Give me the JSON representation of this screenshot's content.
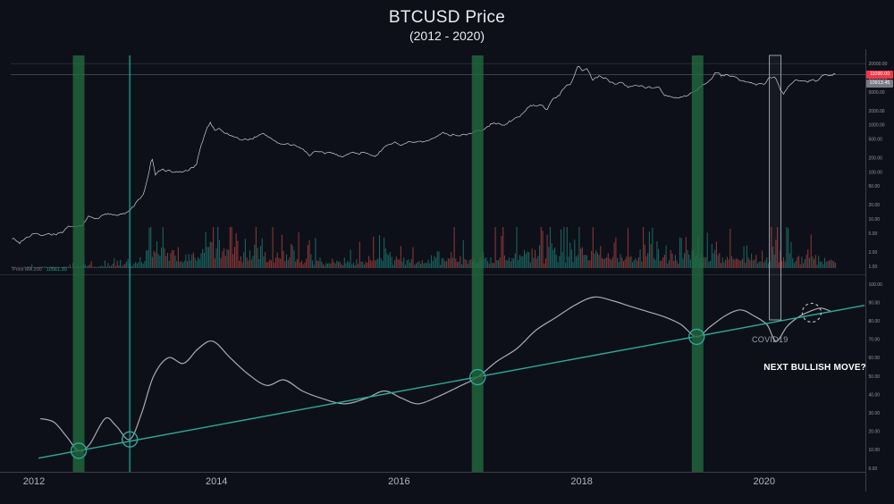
{
  "title": "BTCUSD Price",
  "subtitle": "(2012 - 2020)",
  "annotations": {
    "covid": "COVID19",
    "next_move": "NEXT BULLISH MOVE?"
  },
  "panel_legend": [
    {
      "text": "Price MA 200",
      "color": "#787b86"
    },
    {
      "text": "10561.30",
      "color": "#26a69a"
    }
  ],
  "price_tags": [
    {
      "text": "11090.00",
      "bg": "#f23645"
    },
    {
      "text": "10913.45",
      "bg": "#787b86"
    }
  ],
  "x_axis": {
    "labels": [
      "2012",
      "2014",
      "2016",
      "2018",
      "2020"
    ],
    "years": [
      2012,
      2014,
      2016,
      2018,
      2020
    ]
  },
  "colors": {
    "background": "#0d1018",
    "title": "#e9ecf1",
    "price_line": "#d6d9e0",
    "volume_up": "#26a69a",
    "volume_down": "#ef5350",
    "indicator_line": "#b7bcc7",
    "trendline": "#2da99a",
    "circle": "#2da99a",
    "highlight_green": "#226b3e",
    "teal_vline": "#26a69a",
    "covid_box": "#9aa0ab",
    "dashed_circle": "#b9bfca",
    "grid": "#262b36",
    "price_level_line": "#3c4252",
    "axis_text": "#9598a1",
    "axis_line": "#3a3f4c",
    "year_text": "#b2b5be",
    "tag_red": "#f23645",
    "tag_grey": "#787b86",
    "covid_text": "#9aa0ab",
    "next_move_text": "#ffffff"
  },
  "chart_data": {
    "type": "line",
    "title": "BTCUSD Price (2012 - 2020)",
    "x_unit": "year",
    "xlim": [
      2011.75,
      2021.15
    ],
    "legend_position": "none",
    "grid": "minimal",
    "last_price": 11700,
    "price_series": {
      "name": "BTCUSD",
      "scale": "log",
      "ylim": [
        1,
        30000
      ],
      "points": [
        [
          2011.76,
          4.1
        ],
        [
          2011.84,
          3.1
        ],
        [
          2011.92,
          4.3
        ],
        [
          2012.0,
          5.4
        ],
        [
          2012.07,
          4.5
        ],
        [
          2012.13,
          5.0
        ],
        [
          2012.22,
          4.9
        ],
        [
          2012.3,
          5.1
        ],
        [
          2012.38,
          6.6
        ],
        [
          2012.46,
          6.3
        ],
        [
          2012.54,
          7.8
        ],
        [
          2012.6,
          11.2
        ],
        [
          2012.66,
          10.1
        ],
        [
          2012.75,
          11.8
        ],
        [
          2012.85,
          12.9
        ],
        [
          2012.95,
          13.5
        ],
        [
          2013.04,
          13.9
        ],
        [
          2013.12,
          22
        ],
        [
          2013.2,
          34
        ],
        [
          2013.27,
          120
        ],
        [
          2013.29,
          215
        ],
        [
          2013.33,
          83
        ],
        [
          2013.4,
          115
        ],
        [
          2013.5,
          102
        ],
        [
          2013.6,
          97
        ],
        [
          2013.7,
          110
        ],
        [
          2013.78,
          135
        ],
        [
          2013.84,
          420
        ],
        [
          2013.89,
          780
        ],
        [
          2013.93,
          1120
        ],
        [
          2013.98,
          770
        ],
        [
          2014.03,
          905
        ],
        [
          2014.1,
          650
        ],
        [
          2014.18,
          585
        ],
        [
          2014.27,
          470
        ],
        [
          2014.36,
          505
        ],
        [
          2014.44,
          590
        ],
        [
          2014.52,
          615
        ],
        [
          2014.62,
          490
        ],
        [
          2014.72,
          390
        ],
        [
          2014.82,
          365
        ],
        [
          2014.92,
          335
        ],
        [
          2015.02,
          235
        ],
        [
          2015.08,
          275
        ],
        [
          2015.16,
          245
        ],
        [
          2015.26,
          240
        ],
        [
          2015.36,
          230
        ],
        [
          2015.46,
          250
        ],
        [
          2015.56,
          265
        ],
        [
          2015.66,
          255
        ],
        [
          2015.76,
          232
        ],
        [
          2015.84,
          315
        ],
        [
          2015.9,
          400
        ],
        [
          2015.96,
          435
        ],
        [
          2016.04,
          385
        ],
        [
          2016.12,
          410
        ],
        [
          2016.22,
          420
        ],
        [
          2016.32,
          445
        ],
        [
          2016.42,
          545
        ],
        [
          2016.48,
          735
        ],
        [
          2016.54,
          660
        ],
        [
          2016.62,
          625
        ],
        [
          2016.72,
          640
        ],
        [
          2016.82,
          695
        ],
        [
          2016.92,
          765
        ],
        [
          2017.0,
          985
        ],
        [
          2017.06,
          1120
        ],
        [
          2017.12,
          995
        ],
        [
          2017.2,
          1180
        ],
        [
          2017.28,
          1310
        ],
        [
          2017.36,
          1850
        ],
        [
          2017.44,
          2550
        ],
        [
          2017.5,
          2350
        ],
        [
          2017.56,
          2850
        ],
        [
          2017.61,
          2050
        ],
        [
          2017.68,
          3400
        ],
        [
          2017.76,
          4700
        ],
        [
          2017.82,
          6100
        ],
        [
          2017.87,
          7300
        ],
        [
          2017.92,
          11200
        ],
        [
          2017.96,
          19300
        ],
        [
          2018.01,
          14200
        ],
        [
          2018.06,
          16600
        ],
        [
          2018.12,
          8700
        ],
        [
          2018.2,
          10900
        ],
        [
          2018.28,
          9100
        ],
        [
          2018.36,
          7600
        ],
        [
          2018.44,
          8400
        ],
        [
          2018.52,
          6400
        ],
        [
          2018.58,
          7500
        ],
        [
          2018.66,
          6800
        ],
        [
          2018.74,
          6450
        ],
        [
          2018.84,
          6400
        ],
        [
          2018.9,
          4150
        ],
        [
          2018.98,
          3850
        ],
        [
          2019.06,
          3650
        ],
        [
          2019.14,
          3900
        ],
        [
          2019.24,
          5150
        ],
        [
          2019.32,
          7200
        ],
        [
          2019.4,
          8500
        ],
        [
          2019.47,
          12700
        ],
        [
          2019.53,
          10600
        ],
        [
          2019.6,
          11900
        ],
        [
          2019.68,
          10300
        ],
        [
          2019.76,
          8400
        ],
        [
          2019.84,
          8200
        ],
        [
          2019.92,
          7300
        ],
        [
          2020.0,
          7250
        ],
        [
          2020.06,
          9300
        ],
        [
          2020.12,
          10100
        ],
        [
          2020.18,
          5200
        ],
        [
          2020.21,
          4300
        ],
        [
          2020.27,
          6750
        ],
        [
          2020.34,
          8900
        ],
        [
          2020.42,
          9500
        ],
        [
          2020.5,
          9150
        ],
        [
          2020.58,
          9250
        ],
        [
          2020.64,
          11300
        ],
        [
          2020.7,
          10900
        ],
        [
          2020.78,
          11650
        ]
      ]
    },
    "volume_envelope": [
      [
        2011.76,
        0.04
      ],
      [
        2012.3,
        0.05
      ],
      [
        2012.8,
        0.08
      ],
      [
        2013.1,
        0.18
      ],
      [
        2013.3,
        0.85
      ],
      [
        2013.6,
        0.35
      ],
      [
        2013.95,
        0.9
      ],
      [
        2014.2,
        0.6
      ],
      [
        2014.6,
        0.45
      ],
      [
        2015.0,
        0.3
      ],
      [
        2015.5,
        0.25
      ],
      [
        2015.95,
        0.4
      ],
      [
        2016.3,
        0.3
      ],
      [
        2016.6,
        0.45
      ],
      [
        2016.9,
        0.35
      ],
      [
        2017.3,
        0.45
      ],
      [
        2017.7,
        0.55
      ],
      [
        2017.96,
        0.75
      ],
      [
        2018.15,
        0.65
      ],
      [
        2018.5,
        0.45
      ],
      [
        2018.95,
        0.5
      ],
      [
        2019.3,
        0.5
      ],
      [
        2019.6,
        0.45
      ],
      [
        2019.9,
        0.35
      ],
      [
        2020.18,
        0.55
      ],
      [
        2020.5,
        0.35
      ],
      [
        2020.78,
        0.3
      ]
    ],
    "indicator_series": {
      "name": "trend-oscillator",
      "ylim": [
        0,
        100
      ],
      "points": [
        [
          2012.07,
          27
        ],
        [
          2012.22,
          25
        ],
        [
          2012.36,
          17
        ],
        [
          2012.49,
          9.5
        ],
        [
          2012.61,
          13
        ],
        [
          2012.78,
          27
        ],
        [
          2012.9,
          23
        ],
        [
          2013.05,
          15.7
        ],
        [
          2013.18,
          30
        ],
        [
          2013.31,
          50
        ],
        [
          2013.47,
          60
        ],
        [
          2013.64,
          57
        ],
        [
          2013.8,
          65
        ],
        [
          2013.96,
          69
        ],
        [
          2014.15,
          60
        ],
        [
          2014.35,
          51
        ],
        [
          2014.55,
          45
        ],
        [
          2014.74,
          48
        ],
        [
          2014.94,
          42
        ],
        [
          2015.15,
          38
        ],
        [
          2015.4,
          35
        ],
        [
          2015.64,
          38
        ],
        [
          2015.84,
          42
        ],
        [
          2016.03,
          38
        ],
        [
          2016.21,
          35
        ],
        [
          2016.43,
          39
        ],
        [
          2016.64,
          44
        ],
        [
          2016.86,
          49.5
        ],
        [
          2017.07,
          58
        ],
        [
          2017.29,
          65
        ],
        [
          2017.5,
          75
        ],
        [
          2017.72,
          82
        ],
        [
          2017.94,
          89
        ],
        [
          2018.14,
          93
        ],
        [
          2018.34,
          91
        ],
        [
          2018.53,
          88
        ],
        [
          2018.73,
          85
        ],
        [
          2018.92,
          82
        ],
        [
          2019.09,
          78
        ],
        [
          2019.26,
          71.4
        ],
        [
          2019.41,
          77
        ],
        [
          2019.58,
          83
        ],
        [
          2019.74,
          86
        ],
        [
          2019.88,
          83
        ],
        [
          2020.03,
          78
        ],
        [
          2020.13,
          69
        ],
        [
          2020.25,
          77
        ],
        [
          2020.37,
          82
        ],
        [
          2020.49,
          85
        ],
        [
          2020.62,
          87
        ],
        [
          2020.74,
          85
        ]
      ]
    },
    "trendline": {
      "p1": [
        2012.05,
        5.5
      ],
      "p2": [
        2021.1,
        88.5
      ]
    },
    "touch_circles": [
      [
        2012.49,
        9.5
      ],
      [
        2013.05,
        15.7
      ],
      [
        2016.86,
        49.5
      ],
      [
        2019.26,
        71.4
      ]
    ],
    "dashed_circle": [
      2020.52,
      84.5
    ],
    "highlight_bars": {
      "green_years": [
        2012.49,
        2016.86,
        2019.27
      ],
      "teal_line_year": 2013.05,
      "covid_box_year": 2020.12
    },
    "right_axis": {
      "price_ticks": [
        20000,
        10000,
        5000,
        2000,
        1000,
        500,
        200,
        100,
        50,
        20,
        10,
        5,
        2,
        1
      ],
      "indicator_ticks": [
        100,
        90,
        80,
        70,
        60,
        50,
        40,
        30,
        20,
        10,
        0
      ]
    }
  }
}
